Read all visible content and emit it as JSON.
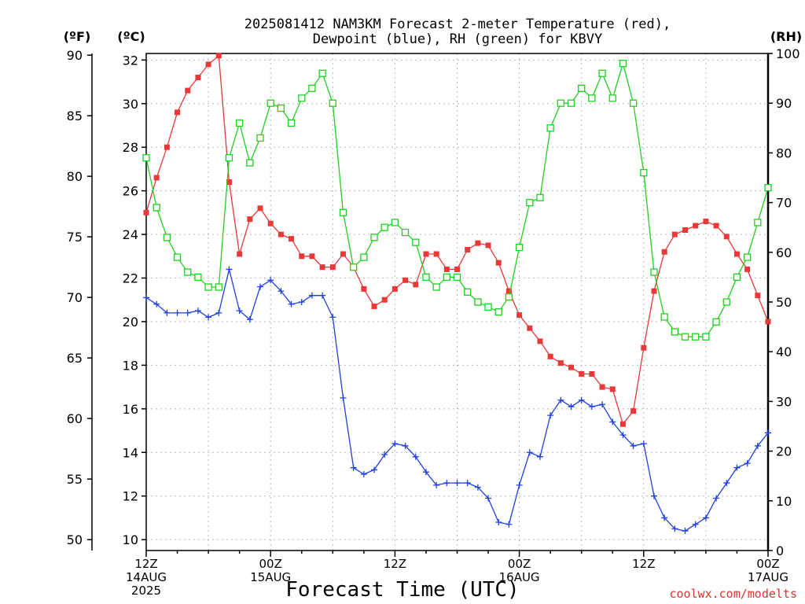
{
  "chart_data": {
    "type": "line",
    "title_line1": "2025081412 NAM3KM Forecast 2-meter Temperature (red),",
    "title_line2": "Dewpoint (blue), RH (green) for KBVY",
    "xlabel": "Forecast Time (UTC)",
    "credit": "coolwx.com/modelts",
    "units": {
      "f": "(ºF)",
      "c": "(ºC)",
      "rh": "(RH)"
    },
    "f_ticks": [
      "90",
      "85",
      "80",
      "75",
      "70",
      "65",
      "60",
      "55",
      "50"
    ],
    "c_ticks": [
      "32",
      "30",
      "28",
      "26",
      "24",
      "22",
      "20",
      "18",
      "16",
      "14",
      "12",
      "10"
    ],
    "rh_ticks": [
      "100",
      "90",
      "80",
      "70",
      "60",
      "50",
      "40",
      "30",
      "20",
      "10",
      "0"
    ],
    "x_ticks": [
      {
        "hour": 0,
        "lines": [
          "12Z",
          "14AUG",
          "2025"
        ]
      },
      {
        "hour": 12,
        "lines": [
          "00Z",
          "15AUG"
        ]
      },
      {
        "hour": 24,
        "lines": [
          "12Z"
        ]
      },
      {
        "hour": 36,
        "lines": [
          "00Z",
          "16AUG"
        ]
      },
      {
        "hour": 48,
        "lines": [
          "12Z"
        ]
      },
      {
        "hour": 60,
        "lines": [
          "00Z",
          "17AUG"
        ]
      }
    ],
    "c_range": [
      9.5,
      32.3
    ],
    "rh_range": [
      0,
      100
    ],
    "x_range": [
      0,
      60
    ],
    "colors": {
      "temperature": "#e83838",
      "dewpoint": "#2040e0",
      "rh": "#20d020"
    },
    "series": [
      {
        "name": "Temperature (red)",
        "axis": "c",
        "marker": "filled-square",
        "x": [
          0,
          1,
          2,
          3,
          4,
          5,
          6,
          7,
          8,
          9,
          10,
          11,
          12,
          13,
          14,
          15,
          16,
          17,
          18,
          19,
          20,
          21,
          22,
          23,
          24,
          25,
          26,
          27,
          28,
          29,
          30,
          31,
          32,
          33,
          34,
          35,
          36,
          37,
          38,
          39,
          40,
          41,
          42,
          43,
          44,
          45,
          46,
          47,
          48,
          49,
          50,
          51,
          52,
          53,
          54,
          55,
          56,
          57,
          58,
          59,
          60
        ],
        "values": [
          25.0,
          26.6,
          28.0,
          29.6,
          30.6,
          31.2,
          31.8,
          32.2,
          26.4,
          23.1,
          24.7,
          25.2,
          24.5,
          24.0,
          23.8,
          23.0,
          23.0,
          22.5,
          22.5,
          23.1,
          22.5,
          21.5,
          20.7,
          21.0,
          21.5,
          21.9,
          21.7,
          23.1,
          23.1,
          22.4,
          22.4,
          23.3,
          23.6,
          23.5,
          22.7,
          21.4,
          20.3,
          19.7,
          19.1,
          18.4,
          18.1,
          17.9,
          17.6,
          17.6,
          17.0,
          16.9,
          15.3,
          15.9,
          18.8,
          21.4,
          23.2,
          24.0,
          24.2,
          24.4,
          24.6,
          24.4,
          23.9,
          23.1,
          22.4,
          21.2,
          20.0
        ]
      },
      {
        "name": "Dewpoint (blue)",
        "axis": "c",
        "marker": "plus",
        "x": [
          0,
          1,
          2,
          3,
          4,
          5,
          6,
          7,
          8,
          9,
          10,
          11,
          12,
          13,
          14,
          15,
          16,
          17,
          18,
          19,
          20,
          21,
          22,
          23,
          24,
          25,
          26,
          27,
          28,
          29,
          30,
          31,
          32,
          33,
          34,
          35,
          36,
          37,
          38,
          39,
          40,
          41,
          42,
          43,
          44,
          45,
          46,
          47,
          48,
          49,
          50,
          51,
          52,
          53,
          54,
          55,
          56,
          57,
          58,
          59,
          60
        ],
        "values": [
          21.1,
          20.8,
          20.4,
          20.4,
          20.4,
          20.5,
          20.2,
          20.4,
          22.4,
          20.5,
          20.1,
          21.6,
          21.9,
          21.4,
          20.8,
          20.9,
          21.2,
          21.2,
          20.2,
          16.5,
          13.3,
          13.0,
          13.2,
          13.9,
          14.4,
          14.3,
          13.8,
          13.1,
          12.5,
          12.6,
          12.6,
          12.6,
          12.4,
          11.9,
          10.8,
          10.7,
          12.5,
          14.0,
          13.8,
          15.7,
          16.4,
          16.1,
          16.4,
          16.1,
          16.2,
          15.4,
          14.8,
          14.3,
          14.4,
          12.0,
          11.0,
          10.5,
          10.4,
          10.7,
          11.0,
          11.9,
          12.6,
          13.3,
          13.5,
          14.3,
          14.9
        ]
      },
      {
        "name": "RH (green)",
        "axis": "rh",
        "marker": "open-square",
        "x": [
          0,
          1,
          2,
          3,
          4,
          5,
          6,
          7,
          8,
          9,
          10,
          11,
          12,
          13,
          14,
          15,
          16,
          17,
          18,
          19,
          20,
          21,
          22,
          23,
          24,
          25,
          26,
          27,
          28,
          29,
          30,
          31,
          32,
          33,
          34,
          35,
          36,
          37,
          38,
          39,
          40,
          41,
          42,
          43,
          44,
          45,
          46,
          47,
          48,
          49,
          50,
          51,
          52,
          53,
          54,
          55,
          56,
          57,
          58,
          59,
          60
        ],
        "values": [
          79,
          69,
          63,
          59,
          56,
          55,
          53,
          53,
          79,
          86,
          78,
          83,
          90,
          89,
          86,
          91,
          93,
          96,
          90,
          68,
          57,
          59,
          63,
          65,
          66,
          64,
          62,
          55,
          53,
          55,
          55,
          52,
          50,
          49,
          48,
          51,
          61,
          70,
          71,
          85,
          90,
          90,
          93,
          91,
          96,
          91,
          98,
          90,
          76,
          56,
          47,
          44,
          43,
          43,
          43,
          46,
          50,
          55,
          59,
          66,
          73
        ]
      }
    ]
  }
}
